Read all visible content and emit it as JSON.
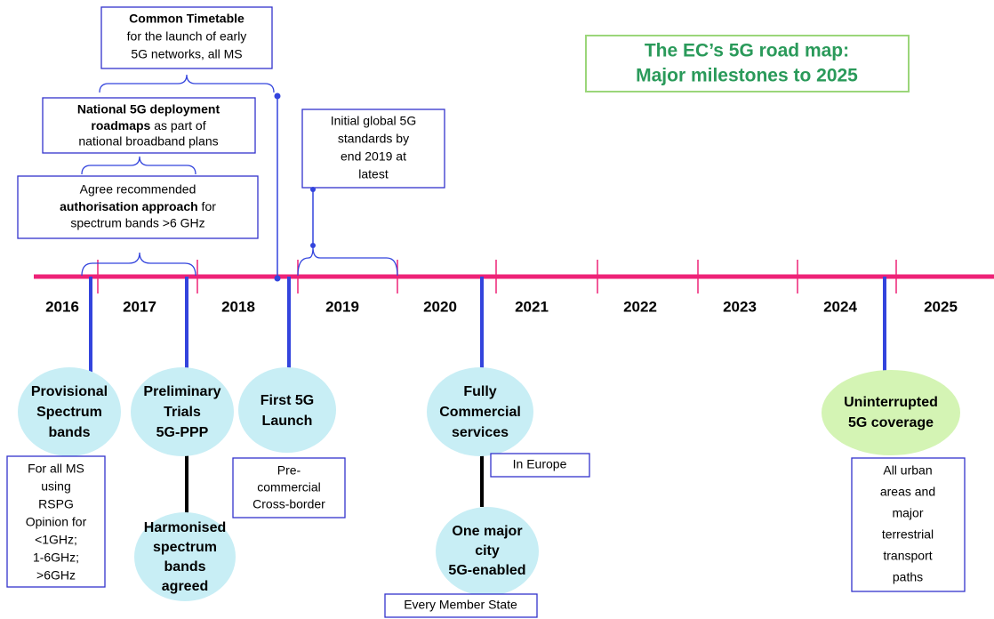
{
  "title": [
    "The EC’s 5G road map:",
    "Major milestones to 2025"
  ],
  "years": [
    "2016",
    "2017",
    "2018",
    "2019",
    "2020",
    "2021",
    "2022",
    "2023",
    "2024",
    "2025"
  ],
  "top_boxes": [
    {
      "lines": [
        "Common Timetable",
        "for the launch of early",
        "5G networks, all MS"
      ]
    },
    {
      "lines": [
        "National 5G deployment",
        "roadmaps",
        " as part of",
        "national broadband plans"
      ]
    },
    {
      "lines": [
        "Agree recommended",
        "authorisation approach",
        " for",
        "spectrum bands >6 GHz"
      ]
    },
    {
      "lines": [
        "Initial global 5G",
        "standards by",
        "end  2019 at",
        "latest"
      ]
    }
  ],
  "milestones": [
    {
      "lines": [
        "Provisional",
        "Spectrum",
        "bands"
      ],
      "note": [
        "For all MS",
        "using",
        "RSPG",
        "Opinion for",
        "<1GHz;",
        "1-6GHz;",
        ">6GHz"
      ]
    },
    {
      "lines": [
        "Preliminary",
        "Trials",
        "5G-PPP"
      ],
      "sub": [
        "Harmonised",
        "spectrum",
        "bands",
        "agreed"
      ]
    },
    {
      "lines": [
        "First 5G",
        "Launch"
      ],
      "note": [
        "Pre-",
        "commercial",
        "Cross-border"
      ]
    },
    {
      "lines": [
        "Fully",
        "Commercial",
        "services"
      ],
      "note": [
        "In Europe"
      ],
      "sub": [
        "One major",
        "city",
        "5G-enabled"
      ],
      "sub_note": [
        "Every Member State"
      ]
    },
    {
      "lines": [
        "Uninterrupted",
        "5G coverage"
      ],
      "note": [
        "All urban",
        "areas and",
        "major",
        "terrestrial",
        "transport",
        "paths"
      ]
    }
  ]
}
